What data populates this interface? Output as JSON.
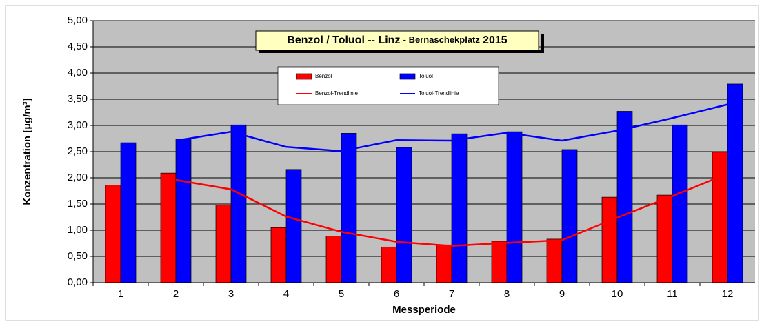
{
  "chart_data": {
    "type": "bar",
    "title_parts": [
      "Benzol / Toluol -- Linz",
      "- Bernaschekplatz",
      "2015"
    ],
    "x_label": "Messperiode",
    "y_label": "Konzentration [µg/m³]",
    "categories": [
      "1",
      "2",
      "3",
      "4",
      "5",
      "6",
      "7",
      "8",
      "9",
      "10",
      "11",
      "12"
    ],
    "series": [
      {
        "name": "Benzol",
        "type": "bar",
        "color": "#ff0000",
        "values": [
          1.86,
          2.09,
          1.48,
          1.05,
          0.89,
          0.68,
          0.72,
          0.79,
          0.83,
          1.63,
          1.67,
          2.49
        ]
      },
      {
        "name": "Toluol",
        "type": "bar",
        "color": "#0000ff",
        "values": [
          2.67,
          2.74,
          3.01,
          2.16,
          2.85,
          2.58,
          2.84,
          2.88,
          2.54,
          3.27,
          3.01,
          3.79
        ]
      },
      {
        "name": "Benzol-Trendlinie",
        "type": "line",
        "color": "#ff0000",
        "values": [
          null,
          1.96,
          1.78,
          1.26,
          0.97,
          0.78,
          0.7,
          0.76,
          0.81,
          1.24,
          1.65,
          2.08
        ]
      },
      {
        "name": "Toluol-Trendlinie",
        "type": "line",
        "color": "#0000ff",
        "values": [
          null,
          2.71,
          2.88,
          2.59,
          2.51,
          2.72,
          2.71,
          2.86,
          2.71,
          2.9,
          3.14,
          3.4
        ]
      }
    ],
    "ylim": [
      0,
      5
    ],
    "yticks": [
      {
        "value": 0,
        "label": "0,00"
      },
      {
        "value": 0.5,
        "label": "0,50"
      },
      {
        "value": 1,
        "label": "1,00"
      },
      {
        "value": 1.5,
        "label": "1,50"
      },
      {
        "value": 2,
        "label": "2,00"
      },
      {
        "value": 2.5,
        "label": "2,50"
      },
      {
        "value": 3,
        "label": "3,00"
      },
      {
        "value": 3.5,
        "label": "3,50"
      },
      {
        "value": 4,
        "label": "4,00"
      },
      {
        "value": 4.5,
        "label": "4,50"
      },
      {
        "value": 5,
        "label": "5,00"
      }
    ],
    "grid": true,
    "plot_background": "#c0c0c0"
  }
}
